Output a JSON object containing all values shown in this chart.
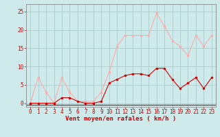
{
  "x": [
    0,
    1,
    2,
    3,
    4,
    5,
    6,
    7,
    8,
    9,
    10,
    11,
    12,
    13,
    14,
    15,
    16,
    17,
    18,
    19,
    20,
    21,
    22,
    23
  ],
  "rafales": [
    0,
    7,
    3,
    0,
    7,
    3,
    0.5,
    0.5,
    0.5,
    3,
    8.5,
    15.5,
    18.5,
    18.5,
    18.5,
    18.5,
    24.5,
    21,
    17,
    15.5,
    13,
    18.5,
    15.5,
    18.5
  ],
  "moyen": [
    0,
    0,
    0,
    0,
    1.5,
    1.5,
    0.5,
    0,
    0,
    0.5,
    5.5,
    6.5,
    7.5,
    8,
    8,
    7.5,
    9.5,
    9.5,
    6.5,
    4,
    5.5,
    7,
    4,
    7
  ],
  "color_rafales": "#ffaaaa",
  "color_moyen": "#cc0000",
  "background": "#ceeaea",
  "grid_color": "#aacccc",
  "xlabel": "Vent moyen/en rafales ( km/h )",
  "ylim": [
    -1,
    27
  ],
  "yticks": [
    0,
    5,
    10,
    15,
    20,
    25
  ],
  "xticks": [
    0,
    1,
    2,
    3,
    4,
    5,
    6,
    7,
    8,
    9,
    10,
    11,
    12,
    13,
    14,
    15,
    16,
    17,
    18,
    19,
    20,
    21,
    22,
    23
  ],
  "marker_size": 2,
  "line_width": 0.8,
  "label_fontsize": 6.5,
  "tick_fontsize": 5.5
}
